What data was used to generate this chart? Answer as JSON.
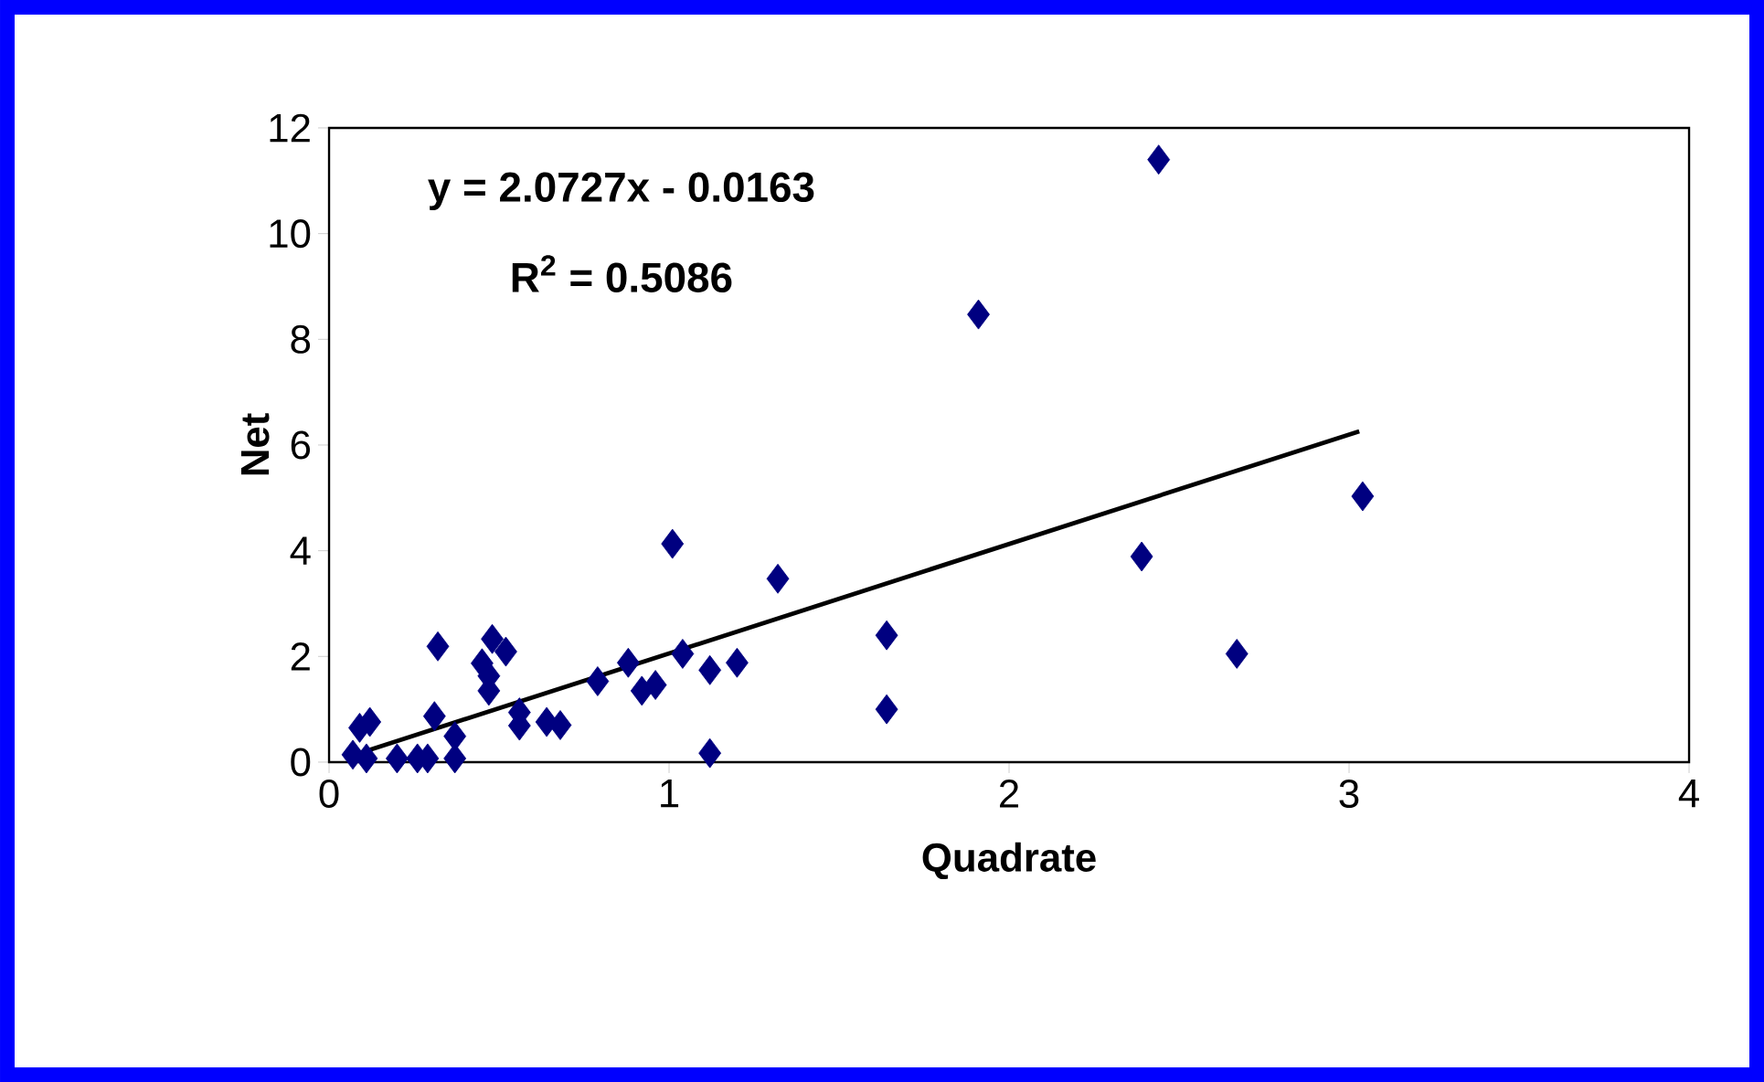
{
  "chart_data": {
    "type": "scatter",
    "xlabel": "Quadrate",
    "ylabel": "Net",
    "xlim": [
      0,
      4
    ],
    "ylim": [
      0,
      12
    ],
    "xticks": [
      0,
      1,
      2,
      3,
      4
    ],
    "yticks": [
      0,
      2,
      4,
      6,
      8,
      10,
      12
    ],
    "grid": false,
    "marker": "diamond",
    "annotations": [
      "y = 2.0727x - 0.0163",
      "R$^{2}$ = 0.5086"
    ],
    "series": [
      {
        "color": "#000080",
        "x": [
          0.09,
          0.12,
          0.07,
          0.11,
          0.2,
          0.26,
          0.29,
          0.32,
          0.31,
          0.37,
          0.37,
          0.48,
          0.52,
          0.45,
          0.47,
          0.47,
          0.56,
          0.56,
          0.64,
          0.68,
          0.79,
          0.88,
          0.92,
          0.96,
          1.01,
          1.04,
          1.12,
          1.2,
          1.12,
          1.32,
          1.64,
          1.64,
          1.91,
          2.39,
          2.44,
          2.67,
          3.04
        ],
        "values": [
          0.65,
          0.76,
          0.14,
          0.07,
          0.07,
          0.07,
          0.07,
          2.19,
          0.87,
          0.49,
          0.07,
          2.33,
          2.09,
          1.87,
          1.63,
          1.35,
          0.94,
          0.69,
          0.76,
          0.7,
          1.53,
          1.88,
          1.35,
          1.46,
          4.13,
          2.05,
          1.74,
          1.88,
          0.17,
          3.47,
          2.4,
          1.0,
          8.47,
          3.89,
          11.4,
          2.05,
          5.03
        ]
      },
      {
        "type": "line",
        "marker": "none",
        "color": "#000000",
        "x": [
          0.07,
          3.03
        ],
        "values": [
          0.13,
          6.26
        ]
      }
    ]
  }
}
